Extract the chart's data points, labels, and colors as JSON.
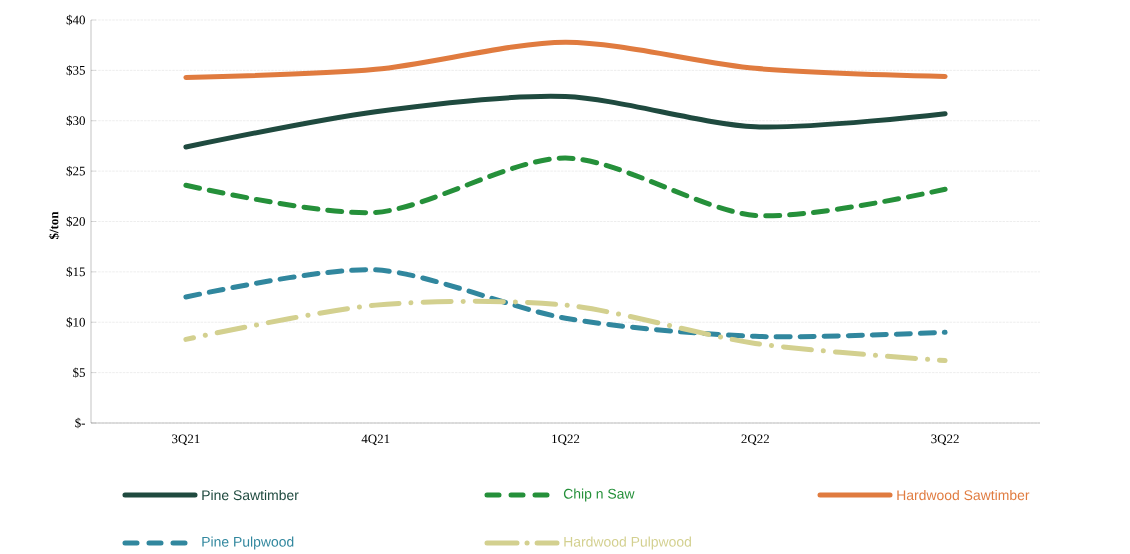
{
  "chart_data": {
    "type": "line",
    "ylabel": "$/ton",
    "categories": [
      "3Q21",
      "4Q21",
      "1Q22",
      "2Q22",
      "3Q22"
    ],
    "series": [
      {
        "name": "Pine Sawtimber",
        "color": "#1f4a3f",
        "line_style": "solid",
        "values": [
          27.4,
          30.9,
          32.4,
          29.4,
          30.7
        ]
      },
      {
        "name": "Chip n Saw",
        "color": "#25903a",
        "line_style": "dashed",
        "values": [
          23.6,
          20.9,
          26.3,
          20.6,
          23.2
        ]
      },
      {
        "name": "Hardwood Sawtimber",
        "color": "#e07b3f",
        "line_style": "solid",
        "values": [
          34.3,
          35.1,
          37.8,
          35.2,
          34.4
        ]
      },
      {
        "name": "Pine Pulpwood",
        "color": "#31879e",
        "line_style": "dashed",
        "values": [
          12.5,
          15.2,
          10.4,
          8.6,
          9.0
        ]
      },
      {
        "name": "Hardwood Pulpwood",
        "color": "#d3d08f",
        "line_style": "dotted",
        "values": [
          8.3,
          11.7,
          11.7,
          7.9,
          6.2
        ]
      }
    ],
    "ylim": [
      0,
      40
    ],
    "yticks": [
      {
        "value": 0,
        "label": "$-"
      },
      {
        "value": 5,
        "label": "$5"
      },
      {
        "value": 10,
        "label": "$10"
      },
      {
        "value": 15,
        "label": "$15"
      },
      {
        "value": 20,
        "label": "$20"
      },
      {
        "value": 25,
        "label": "$25"
      },
      {
        "value": 30,
        "label": "$30"
      },
      {
        "value": 35,
        "label": "$35"
      },
      {
        "value": 40,
        "label": "$40"
      }
    ],
    "grid": "y",
    "legend": "bottom"
  }
}
